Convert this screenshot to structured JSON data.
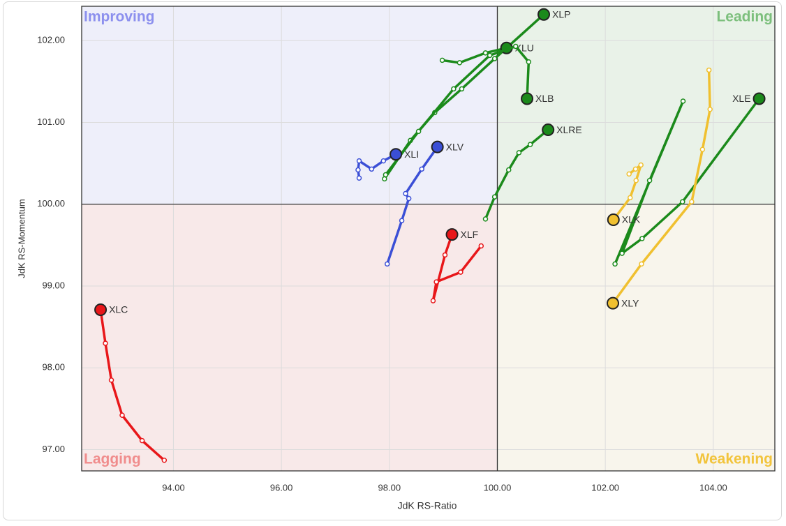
{
  "chart_data": {
    "type": "rrg",
    "x_label": "JdK RS-Ratio",
    "y_label": "JdK RS-Momentum",
    "xlim": [
      92.3,
      105.14
    ],
    "ylim": [
      96.74,
      102.42
    ],
    "xticks": [
      {
        "value": 94,
        "label": "94.00"
      },
      {
        "value": 96,
        "label": "96.00"
      },
      {
        "value": 98,
        "label": "98.00"
      },
      {
        "value": 100,
        "label": "100.00"
      },
      {
        "value": 102,
        "label": "102.00"
      },
      {
        "value": 104,
        "label": "104.00"
      }
    ],
    "yticks": [
      {
        "value": 97,
        "label": "97.00"
      },
      {
        "value": 98,
        "label": "98.00"
      },
      {
        "value": 99,
        "label": "99.00"
      },
      {
        "value": 100,
        "label": "100.00"
      },
      {
        "value": 101,
        "label": "101.00"
      },
      {
        "value": 102,
        "label": "102.00"
      }
    ],
    "grid": true,
    "quadrant_center": [
      100,
      100
    ],
    "quadrants": [
      {
        "label": "Improving",
        "corner": "top-left",
        "fill": "#eeeffa",
        "color": "#8c90ee"
      },
      {
        "label": "Leading",
        "corner": "top-right",
        "fill": "#e9f2e8",
        "color": "#7cbf7c"
      },
      {
        "label": "Lagging",
        "corner": "bottom-left",
        "fill": "#f8e9e9",
        "color": "#f08c8c"
      },
      {
        "label": "Weakening",
        "corner": "bottom-right",
        "fill": "#f8f5ec",
        "color": "#f2c43c"
      }
    ],
    "series": [
      {
        "name": "XLP",
        "color": "#1b8a1b",
        "x": [
          97.91,
          98.39,
          98.84,
          99.34,
          99.95,
          100.86
        ],
        "values": [
          100.31,
          100.78,
          101.12,
          101.41,
          101.78,
          102.32
        ]
      },
      {
        "name": "XLU",
        "color": "#1b8a1b",
        "x": [
          98.98,
          99.3,
          99.78,
          100.17
        ],
        "values": [
          101.76,
          101.73,
          101.85,
          101.91
        ]
      },
      {
        "name": "XLB",
        "color": "#1b8a1b",
        "x": [
          97.93,
          98.54,
          99.19,
          99.86,
          100.34,
          100.58,
          100.55
        ],
        "values": [
          100.36,
          100.89,
          101.41,
          101.82,
          101.93,
          101.74,
          101.29
        ]
      },
      {
        "name": "XLRE",
        "color": "#1b8a1b",
        "x": [
          99.78,
          99.95,
          100.21,
          100.4,
          100.61,
          100.94
        ],
        "values": [
          99.82,
          100.09,
          100.42,
          100.63,
          100.73,
          100.91
        ]
      },
      {
        "name": "XLI",
        "color": "#3b4fd6",
        "x": [
          97.44,
          97.42,
          97.44,
          97.67,
          97.89,
          98.12
        ],
        "values": [
          100.32,
          100.42,
          100.53,
          100.43,
          100.53,
          100.61
        ]
      },
      {
        "name": "XLV",
        "color": "#3b4fd6",
        "x": [
          97.96,
          98.23,
          98.36,
          98.3,
          98.6,
          98.89
        ],
        "values": [
          99.27,
          99.8,
          100.07,
          100.13,
          100.43,
          100.7
        ]
      },
      {
        "name": "XLF",
        "color": "#e8171a",
        "x": [
          99.7,
          99.32,
          98.87,
          98.81,
          99.03,
          99.16
        ],
        "values": [
          99.49,
          99.17,
          99.05,
          98.82,
          99.38,
          99.63
        ]
      },
      {
        "name": "XLC",
        "color": "#e8171a",
        "x": [
          93.83,
          93.42,
          93.05,
          92.85,
          92.74,
          92.65
        ],
        "values": [
          96.87,
          97.11,
          97.42,
          97.85,
          98.3,
          98.71
        ]
      },
      {
        "name": "XLE",
        "color": "#1b8a1b",
        "x": [
          102.18,
          103.44,
          102.82,
          102.31,
          102.68,
          103.43,
          104.85
        ],
        "values": [
          99.27,
          101.26,
          100.29,
          99.4,
          99.58,
          100.03,
          101.29
        ]
      },
      {
        "name": "XLK",
        "color": "#f0c030",
        "x": [
          102.44,
          102.56,
          102.66,
          102.57,
          102.46,
          102.15
        ],
        "values": [
          100.37,
          100.43,
          100.48,
          100.29,
          100.08,
          99.81
        ]
      },
      {
        "name": "XLY",
        "color": "#f0c030",
        "x": [
          103.92,
          103.94,
          103.8,
          103.6,
          102.67,
          102.14
        ],
        "values": [
          101.64,
          101.16,
          100.67,
          100.03,
          99.27,
          98.79
        ]
      }
    ]
  }
}
